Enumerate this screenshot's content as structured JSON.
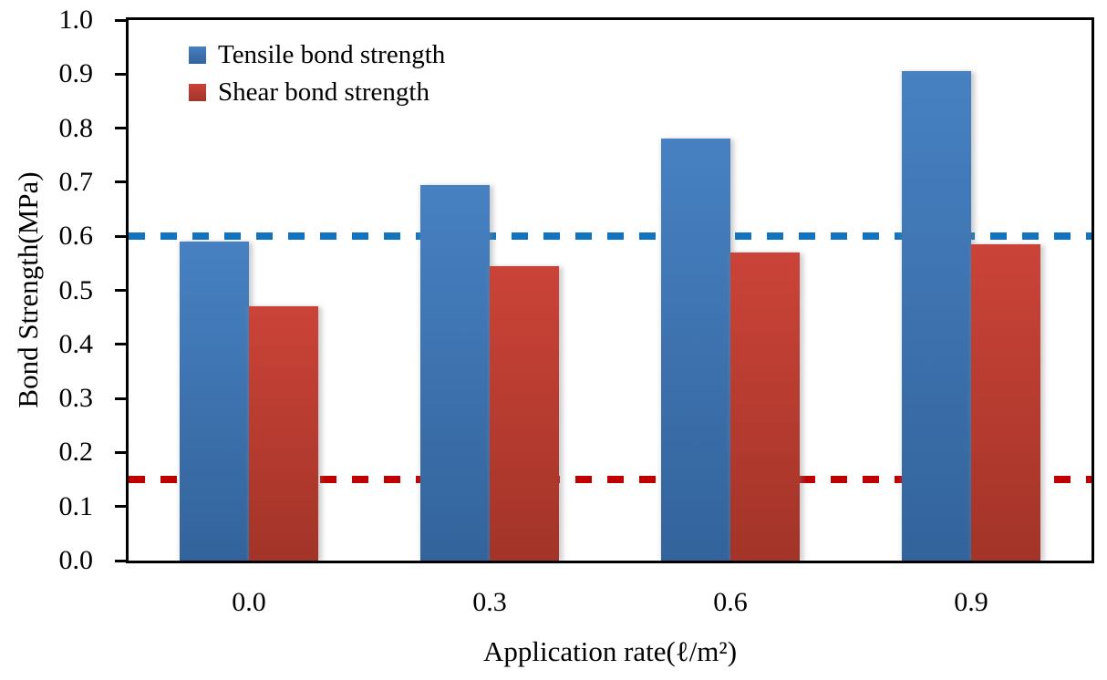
{
  "chart_data": {
    "type": "bar",
    "title": "",
    "xlabel": "Application rate(ℓ/m²)",
    "ylabel": "Bond Strength(MPa)",
    "categories": [
      "0.0",
      "0.3",
      "0.6",
      "0.9"
    ],
    "series": [
      {
        "name": "Tensile bond strength",
        "values": [
          0.59,
          0.695,
          0.78,
          0.905
        ],
        "color_top": "#4781c2",
        "color_bottom": "#33639b"
      },
      {
        "name": "Shear bond strength",
        "values": [
          0.47,
          0.545,
          0.57,
          0.585
        ],
        "color_top": "#cb4338",
        "color_bottom": "#a33428"
      }
    ],
    "ref_lines": [
      {
        "name": "tensile-limit-dashed-line",
        "value": 0.6,
        "color": "#1273bf",
        "style": "dashed"
      },
      {
        "name": "shear-limit-dashed-line",
        "value": 0.15,
        "color": "#c00000",
        "style": "dashed"
      }
    ],
    "ylim": [
      0.0,
      1.0
    ],
    "ytick_step": 0.1,
    "ytick_labels": [
      "0.0",
      "0.1",
      "0.2",
      "0.3",
      "0.4",
      "0.5",
      "0.6",
      "0.7",
      "0.8",
      "0.9",
      "1.0"
    ],
    "grid": false,
    "legend_position": "top-left-inside",
    "axis_color": "#000000"
  }
}
